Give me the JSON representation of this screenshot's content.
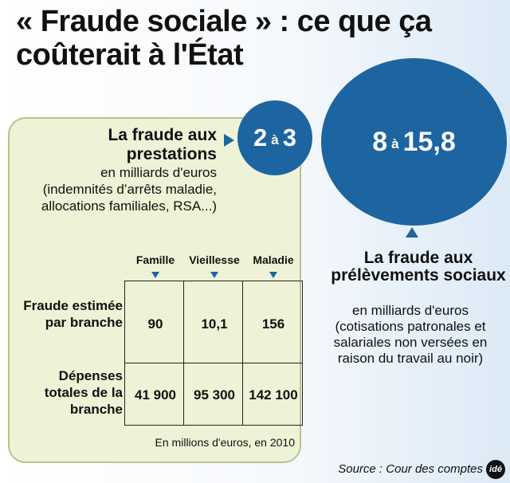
{
  "title": "« Fraude sociale » : ce que ça coûterait à l'État",
  "chart_data": {
    "type": "table",
    "prestations": {
      "heading": "La fraude aux prestations",
      "unit": "en milliards d'euros",
      "detail": "(indemnités d’arrêts maladie, allocations familiales, RSA...)",
      "min": "2",
      "connector": "à",
      "max": "3"
    },
    "prelevements": {
      "heading": "La fraude aux prélèvements sociaux",
      "unit": "en milliards d'euros",
      "detail": "(cotisations patronales et salariales non versées en raison du travail au noir)",
      "min": "8",
      "connector": "à",
      "max": "15,8"
    },
    "table": {
      "columns": [
        "Famille",
        "Vieillesse",
        "Maladie"
      ],
      "rows": [
        {
          "label": "Fraude estimée par branche",
          "values": [
            "90",
            "10,1",
            "156"
          ]
        },
        {
          "label": "Dépenses totales de la branche",
          "values": [
            "41 900",
            "95 300",
            "142 100"
          ]
        }
      ],
      "note": "En millions d'euros, en 2010"
    }
  },
  "source": "Source : Cour des comptes",
  "logo_text": "idé",
  "colors": {
    "accent": "#1c65a1",
    "panel": "#eef2d6",
    "panel_border": "#b6c48c"
  }
}
